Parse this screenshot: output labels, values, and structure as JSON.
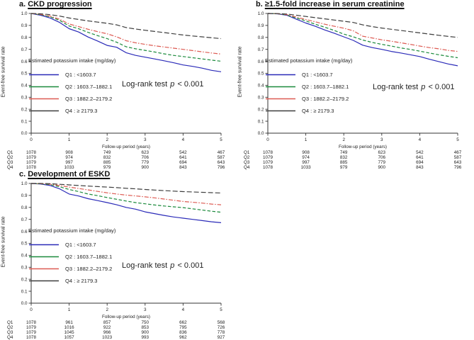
{
  "figure": {
    "ylabel": "Event-free survival rate",
    "xlabel": "Follow-up period (years)",
    "legend_title": "Estimated potassium intake (mg/day)",
    "logrank": {
      "prefix": "Log-rank test",
      "p": "p",
      "value": "< 0.001"
    }
  },
  "colors": {
    "q1": "#2a2ab8",
    "q2": "#1b8a3c",
    "q3": "#dd5a52",
    "q4": "#3d3d3d",
    "axis": "#333333"
  },
  "chart_data": [
    {
      "type": "line",
      "panel_letter": "a.",
      "title": "CKD progression",
      "xlabel": "Follow-up period (years)",
      "ylabel": "Event-free survival rate",
      "xlim": [
        0,
        5
      ],
      "ylim": [
        0.0,
        1.0
      ],
      "xticks": [
        0,
        1,
        2,
        3,
        4,
        5
      ],
      "yticks": [
        0.0,
        0.1,
        0.2,
        0.3,
        0.4,
        0.5,
        0.6,
        0.7,
        0.8,
        0.9,
        1.0
      ],
      "legend_title": "Estimated potassium intake (mg/day)",
      "annotation": "Log-rank test p < 0.001",
      "x": [
        0,
        0.25,
        0.5,
        0.75,
        1,
        1.25,
        1.5,
        1.75,
        2,
        2.25,
        2.5,
        2.75,
        3,
        3.25,
        3.5,
        3.75,
        4,
        4.25,
        4.5,
        4.75,
        5
      ],
      "series": [
        {
          "name": "Q1",
          "label": "Q1 : <1603.7",
          "color": "#2a2ab8",
          "dash": "solid",
          "y": [
            1.0,
            0.985,
            0.962,
            0.925,
            0.873,
            0.845,
            0.803,
            0.77,
            0.733,
            0.718,
            0.672,
            0.65,
            0.635,
            0.62,
            0.605,
            0.588,
            0.57,
            0.558,
            0.543,
            0.525,
            0.513
          ]
        },
        {
          "name": "Q2",
          "label": "Q2 : 1603.7–1882.1",
          "color": "#1b8a3c",
          "dash": "dash",
          "y": [
            1.0,
            0.99,
            0.972,
            0.942,
            0.895,
            0.872,
            0.842,
            0.815,
            0.79,
            0.76,
            0.722,
            0.705,
            0.692,
            0.678,
            0.663,
            0.65,
            0.64,
            0.63,
            0.62,
            0.61,
            0.601
          ]
        },
        {
          "name": "Q3",
          "label": "Q3 : 1882.2–2179.2",
          "color": "#dd5a52",
          "dash": "dashdot",
          "y": [
            1.0,
            0.992,
            0.978,
            0.952,
            0.912,
            0.89,
            0.868,
            0.848,
            0.83,
            0.805,
            0.772,
            0.755,
            0.742,
            0.73,
            0.72,
            0.71,
            0.7,
            0.69,
            0.68,
            0.67,
            0.661
          ]
        },
        {
          "name": "Q4",
          "label": "Q4 : ≥ 2179.3",
          "color": "#3d3d3d",
          "dash": "longdash",
          "y": [
            1.0,
            0.997,
            0.99,
            0.978,
            0.962,
            0.95,
            0.938,
            0.928,
            0.918,
            0.905,
            0.882,
            0.87,
            0.86,
            0.85,
            0.84,
            0.83,
            0.82,
            0.812,
            0.805,
            0.797,
            0.79
          ]
        }
      ],
      "at_risk": {
        "row_labels": [
          "Q1",
          "Q2",
          "Q3",
          "Q4"
        ],
        "columns": [
          0,
          1,
          2,
          3,
          4,
          5
        ],
        "values": [
          [
            1078,
            908,
            749,
            623,
            542,
            467
          ],
          [
            1079,
            974,
            832,
            706,
            641,
            587
          ],
          [
            1079,
            997,
            885,
            779,
            694,
            643
          ],
          [
            1078,
            1033,
            979,
            900,
            843,
            796
          ]
        ]
      }
    },
    {
      "type": "line",
      "panel_letter": "b.",
      "title": "≥1.5-fold increase in serum creatinine",
      "xlabel": "Follow-up period (years)",
      "ylabel": "Event-free survival rate",
      "xlim": [
        0,
        5
      ],
      "ylim": [
        0.0,
        1.0
      ],
      "xticks": [
        0,
        1,
        2,
        3,
        4,
        5
      ],
      "yticks": [
        0.0,
        0.1,
        0.2,
        0.3,
        0.4,
        0.5,
        0.6,
        0.7,
        0.8,
        0.9,
        1.0
      ],
      "legend_title": "Estimated potassium intake (mg/day)",
      "annotation": "Log-rank test p < 0.001",
      "x": [
        0,
        0.25,
        0.5,
        0.75,
        1,
        1.25,
        1.5,
        1.75,
        2,
        2.25,
        2.5,
        2.75,
        3,
        3.25,
        3.5,
        3.75,
        4,
        4.25,
        4.5,
        4.75,
        5
      ],
      "series": [
        {
          "name": "Q1",
          "label": "Q1 : <1603.7",
          "color": "#2a2ab8",
          "dash": "solid",
          "y": [
            1.0,
            0.997,
            0.985,
            0.952,
            0.92,
            0.893,
            0.862,
            0.835,
            0.805,
            0.775,
            0.735,
            0.715,
            0.7,
            0.683,
            0.67,
            0.655,
            0.64,
            0.618,
            0.598,
            0.578,
            0.563
          ]
        },
        {
          "name": "Q2",
          "label": "Q2 : 1603.7–1882.1",
          "color": "#1b8a3c",
          "dash": "dash",
          "y": [
            1.0,
            0.998,
            0.988,
            0.962,
            0.938,
            0.91,
            0.885,
            0.858,
            0.828,
            0.805,
            0.778,
            0.758,
            0.742,
            0.728,
            0.712,
            0.7,
            0.685,
            0.67,
            0.655,
            0.642,
            0.63
          ]
        },
        {
          "name": "Q3",
          "label": "Q3 : 1882.2–2179.2",
          "color": "#dd5a52",
          "dash": "dashdot",
          "y": [
            1.0,
            0.998,
            0.99,
            0.97,
            0.95,
            0.93,
            0.91,
            0.893,
            0.877,
            0.855,
            0.81,
            0.795,
            0.78,
            0.768,
            0.755,
            0.742,
            0.728,
            0.715,
            0.705,
            0.692,
            0.683
          ]
        },
        {
          "name": "Q4",
          "label": "Q4 : ≥ 2179.3",
          "color": "#3d3d3d",
          "dash": "longdash",
          "y": [
            1.0,
            0.999,
            0.995,
            0.985,
            0.975,
            0.965,
            0.955,
            0.945,
            0.935,
            0.925,
            0.905,
            0.89,
            0.878,
            0.868,
            0.858,
            0.848,
            0.838,
            0.828,
            0.818,
            0.808,
            0.8
          ]
        }
      ],
      "at_risk": {
        "row_labels": [
          "Q1",
          "Q2",
          "Q3",
          "Q4"
        ],
        "columns": [
          0,
          1,
          2,
          3,
          4,
          5
        ],
        "values": [
          [
            1078,
            908,
            749,
            623,
            542,
            467
          ],
          [
            1079,
            974,
            832,
            706,
            641,
            587
          ],
          [
            1079,
            997,
            885,
            779,
            694,
            643
          ],
          [
            1078,
            1033,
            979,
            900,
            843,
            796
          ]
        ]
      }
    },
    {
      "type": "line",
      "panel_letter": "c.",
      "title": "Development of ESKD",
      "xlabel": "Follow-up period (years)",
      "ylabel": "Event-free survival rate",
      "xlim": [
        0,
        5
      ],
      "ylim": [
        0.0,
        1.0
      ],
      "xticks": [
        0,
        1,
        2,
        3,
        4,
        5
      ],
      "yticks": [
        0.0,
        0.1,
        0.2,
        0.3,
        0.4,
        0.5,
        0.6,
        0.7,
        0.8,
        0.9,
        1.0
      ],
      "legend_title": "Estimated potassium intake (mg/day)",
      "annotation": "Log-rank test p < 0.001",
      "x": [
        0,
        0.25,
        0.5,
        0.75,
        1,
        1.25,
        1.5,
        1.75,
        2,
        2.25,
        2.5,
        2.75,
        3,
        3.25,
        3.5,
        3.75,
        4,
        4.25,
        4.5,
        4.75,
        5
      ],
      "series": [
        {
          "name": "Q1",
          "label": "Q1 : <1603.7",
          "color": "#2a2ab8",
          "dash": "solid",
          "y": [
            1.0,
            0.995,
            0.983,
            0.955,
            0.912,
            0.895,
            0.873,
            0.857,
            0.84,
            0.822,
            0.8,
            0.785,
            0.763,
            0.748,
            0.733,
            0.72,
            0.71,
            0.7,
            0.69,
            0.68,
            0.672
          ]
        },
        {
          "name": "Q2",
          "label": "Q2 : 1603.7–1882.1",
          "color": "#1b8a3c",
          "dash": "dash",
          "y": [
            1.0,
            0.997,
            0.99,
            0.972,
            0.95,
            0.932,
            0.912,
            0.898,
            0.882,
            0.868,
            0.853,
            0.84,
            0.83,
            0.82,
            0.812,
            0.805,
            0.798,
            0.788,
            0.778,
            0.768,
            0.76
          ]
        },
        {
          "name": "Q3",
          "label": "Q3 : 1882.2–2179.2",
          "color": "#dd5a52",
          "dash": "dashdot",
          "y": [
            1.0,
            0.998,
            0.994,
            0.982,
            0.97,
            0.958,
            0.946,
            0.934,
            0.922,
            0.912,
            0.903,
            0.896,
            0.888,
            0.88,
            0.87,
            0.86,
            0.85,
            0.843,
            0.836,
            0.828,
            0.822
          ]
        },
        {
          "name": "Q4",
          "label": "Q4 : ≥ 2179.3",
          "color": "#3d3d3d",
          "dash": "longdash",
          "y": [
            1.0,
            1.0,
            0.998,
            0.993,
            0.988,
            0.983,
            0.978,
            0.974,
            0.97,
            0.965,
            0.96,
            0.955,
            0.95,
            0.945,
            0.94,
            0.936,
            0.932,
            0.929,
            0.926,
            0.923,
            0.92
          ]
        }
      ],
      "at_risk": {
        "row_labels": [
          "Q1",
          "Q2",
          "Q3",
          "Q4"
        ],
        "columns": [
          0,
          1,
          2,
          3,
          4,
          5
        ],
        "values": [
          [
            1078,
            961,
            857,
            750,
            662,
            568
          ],
          [
            1079,
            1016,
            922,
            853,
            795,
            726
          ],
          [
            1079,
            1045,
            966,
            900,
            836,
            778
          ],
          [
            1078,
            1057,
            1023,
            993,
            962,
            927
          ]
        ]
      }
    }
  ]
}
